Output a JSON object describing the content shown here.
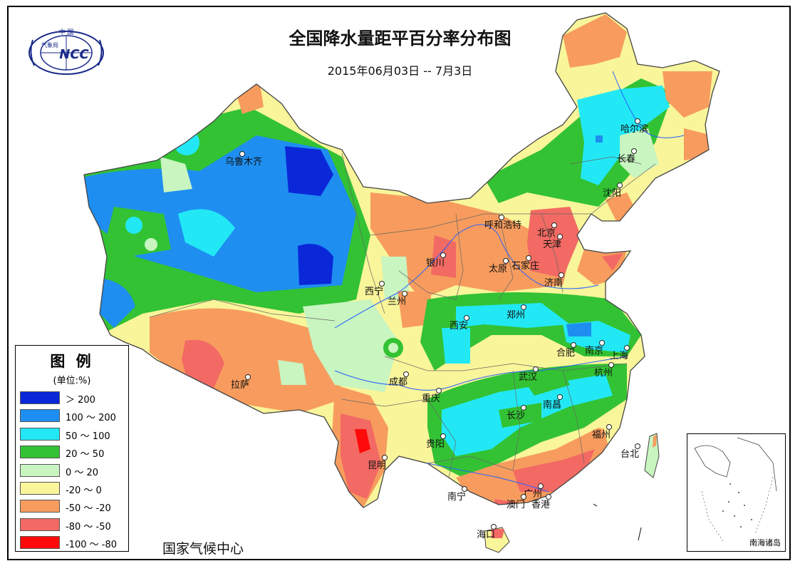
{
  "title": "全国降水量距平百分率分布图",
  "subtitle": "2015年06月03日 -- 7月3日",
  "logo": {
    "top_text": "中 国",
    "main_text": "NCC",
    "side_text": "气象局"
  },
  "legend": {
    "title": "图 例",
    "unit": "(单位:%)",
    "items": [
      {
        "label": "＞ 200",
        "color": "#0a28d8"
      },
      {
        "label": "100 ～ 200",
        "color": "#1e8ef0"
      },
      {
        "label": "50 ～ 100",
        "color": "#22e8f5"
      },
      {
        "label": "20 ～ 50",
        "color": "#33c233"
      },
      {
        "label": "0 ～ 20",
        "color": "#c8f5c0"
      },
      {
        "label": "-20 ～ 0",
        "color": "#f9f59a"
      },
      {
        "label": "-50 ～ -20",
        "color": "#f79c5e"
      },
      {
        "label": "-80 ～ -50",
        "color": "#f26a63"
      },
      {
        "label": "-100 ～ -80",
        "color": "#ff0a0a"
      }
    ]
  },
  "footer": "国家气候中心",
  "inset_label": "南海诸岛",
  "cities": [
    {
      "name": "乌鲁木齐"
    },
    {
      "name": "哈尔滨"
    },
    {
      "name": "长春"
    },
    {
      "name": "沈阳"
    },
    {
      "name": "呼和浩特"
    },
    {
      "name": "北京"
    },
    {
      "name": "天津"
    },
    {
      "name": "银川"
    },
    {
      "name": "太原"
    },
    {
      "name": "石家庄"
    },
    {
      "name": "济南"
    },
    {
      "name": "西宁"
    },
    {
      "name": "兰州"
    },
    {
      "name": "郑州"
    },
    {
      "name": "西安"
    },
    {
      "name": "合肥"
    },
    {
      "name": "南京"
    },
    {
      "name": "上海"
    },
    {
      "name": "杭州"
    },
    {
      "name": "武汉"
    },
    {
      "name": "拉萨"
    },
    {
      "name": "成都"
    },
    {
      "name": "重庆"
    },
    {
      "name": "南昌"
    },
    {
      "name": "长沙"
    },
    {
      "name": "贵阳"
    },
    {
      "name": "福州"
    },
    {
      "name": "台北"
    },
    {
      "name": "昆明"
    },
    {
      "name": "南宁"
    },
    {
      "name": "广州"
    },
    {
      "name": "澳门"
    },
    {
      "name": "香港"
    },
    {
      "name": "海口"
    }
  ]
}
